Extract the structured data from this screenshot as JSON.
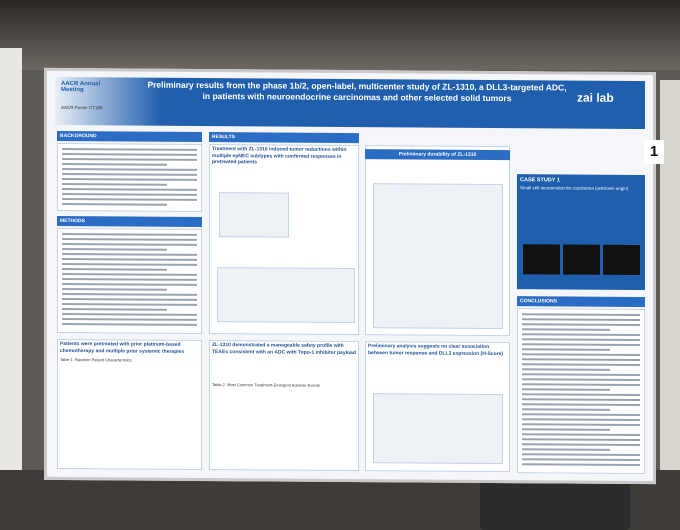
{
  "header": {
    "title": "Preliminary results from the phase 1b/2, open-label, multicenter study of ZL-1310, a DLL3-targeted ADC, in patients with neuroendocrine carcinomas and other selected solid tumors",
    "logo": "zai lab",
    "meeting": "AACR Annual Meeting",
    "poster_id": "AACR Poster CT180"
  },
  "board_number": "1",
  "sections": {
    "background": "BACKGROUND",
    "methods": "METHODS",
    "results": "RESULTS",
    "pretreated": "Patients were pretreated with prior platinum-based chemotherapy and multiple prior systemic therapies",
    "table1": "Table 1. Baseline Patient Characteristics",
    "tumor_reductions": "Treatment with ZL-1310 induced tumor reductions within multiple epNEC subtypes with confirmed responses in pretreated patients",
    "safety": "ZL-1310 demonstrated a manageable safety profile with TEAEs consistent with an ADC with Topo-1 inhibitor payload",
    "table2": "Table 2. Most Common Treatment-Emergent Adverse Events",
    "durability": "Preliminary durability of ZL-1310",
    "dll3": "Preliminary analysis suggests no clear association between tumor response and DLL3 expression (H-Score)",
    "case_study": "CASE STUDY 1",
    "case_subtitle": "Small cell neuroendocrine carcinoma (unknown origin)",
    "conclusions": "CONCLUSIONS"
  }
}
